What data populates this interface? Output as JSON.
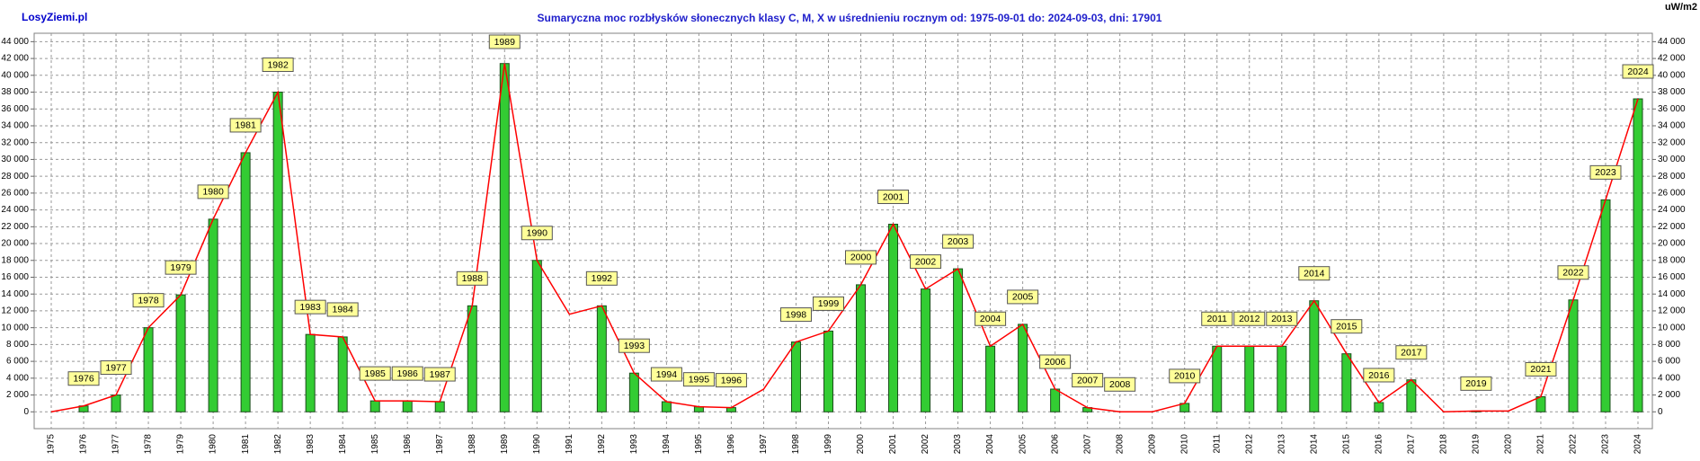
{
  "chart_data": {
    "type": "bar",
    "brand": "LosyZiemi.pl",
    "title": "Sumaryczna moc rozbłysków słonecznych klasy C, M, X w uśrednieniu rocznym od: 1975-09-01 do: 2024-09-03, dni: 17901",
    "y_axis_label": "uW/m2",
    "categories": [
      "1975",
      "1976",
      "1977",
      "1978",
      "1979",
      "1980",
      "1981",
      "1982",
      "1983",
      "1984",
      "1985",
      "1986",
      "1987",
      "1988",
      "1989",
      "1990",
      "1991",
      "1992",
      "1993",
      "1994",
      "1995",
      "1996",
      "1997",
      "1998",
      "1999",
      "2000",
      "2001",
      "2002",
      "2003",
      "2004",
      "2005",
      "2006",
      "2007",
      "2008",
      "2009",
      "2010",
      "2011",
      "2012",
      "2013",
      "2014",
      "2015",
      "2016",
      "2017",
      "2018",
      "2019",
      "2020",
      "2021",
      "2022",
      "2023",
      "2024"
    ],
    "series": [
      {
        "type": "bar",
        "color": "#33cc33",
        "values": [
          null,
          700,
          2000,
          10000,
          13900,
          22900,
          30800,
          38000,
          9200,
          8900,
          1300,
          1300,
          1200,
          12600,
          41400,
          18000,
          null,
          12600,
          4600,
          1200,
          600,
          500,
          null,
          8300,
          9600,
          15100,
          22300,
          14600,
          17000,
          7800,
          10400,
          2700,
          500,
          0,
          null,
          1000,
          7800,
          7800,
          7800,
          13200,
          6900,
          1100,
          3800,
          null,
          100,
          null,
          1800,
          13300,
          25200,
          37200
        ]
      },
      {
        "type": "line",
        "color": "#ff0000",
        "values": [
          0,
          700,
          2000,
          10000,
          13900,
          22900,
          30800,
          38000,
          9200,
          8900,
          1300,
          1300,
          1200,
          12600,
          41400,
          18000,
          11600,
          12600,
          4600,
          1200,
          600,
          500,
          2700,
          8300,
          9600,
          15100,
          22300,
          14600,
          17000,
          7800,
          10400,
          2700,
          500,
          0,
          0,
          1000,
          7800,
          7800,
          7800,
          13200,
          6900,
          1100,
          3800,
          0,
          100,
          100,
          1800,
          13300,
          25200,
          37200
        ]
      }
    ],
    "ylim": [
      -2000,
      45000
    ],
    "yticks": [
      {
        "value": 0,
        "label": "0"
      },
      {
        "value": 2000,
        "label": "2 000"
      },
      {
        "value": 4000,
        "label": "4 000"
      },
      {
        "value": 6000,
        "label": "6 000"
      },
      {
        "value": 8000,
        "label": "8 000"
      },
      {
        "value": 10000,
        "label": "10 000"
      },
      {
        "value": 12000,
        "label": "12 000"
      },
      {
        "value": 14000,
        "label": "14 000"
      },
      {
        "value": 16000,
        "label": "16 000"
      },
      {
        "value": 18000,
        "label": "18 000"
      },
      {
        "value": 20000,
        "label": "20 000"
      },
      {
        "value": 22000,
        "label": "22 000"
      },
      {
        "value": 24000,
        "label": "24 000"
      },
      {
        "value": 26000,
        "label": "26 000"
      },
      {
        "value": 28000,
        "label": "28 000"
      },
      {
        "value": 30000,
        "label": "30 000"
      },
      {
        "value": 32000,
        "label": "32 000"
      },
      {
        "value": 34000,
        "label": "34 000"
      },
      {
        "value": 36000,
        "label": "36 000"
      },
      {
        "value": 38000,
        "label": "38 000"
      },
      {
        "value": 40000,
        "label": "40 000"
      },
      {
        "value": 42000,
        "label": "42 000"
      },
      {
        "value": 44000,
        "label": "44 000"
      }
    ],
    "grid": true
  }
}
